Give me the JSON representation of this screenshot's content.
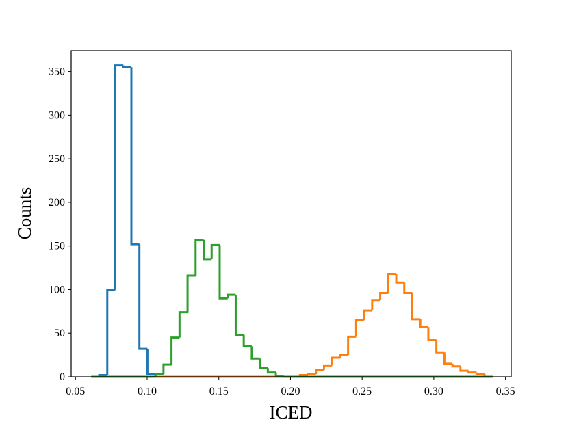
{
  "chart_data": {
    "type": "histogram",
    "xlabel": "ICED",
    "ylabel": "Counts",
    "bins": [
      0.061,
      0.0666,
      0.0722,
      0.0778,
      0.0834,
      0.089,
      0.0946,
      0.1002,
      0.1058,
      0.1114,
      0.117,
      0.1226,
      0.1282,
      0.1338,
      0.1394,
      0.145,
      0.1506,
      0.1562,
      0.1618,
      0.1674,
      0.173,
      0.1786,
      0.1842,
      0.1898,
      0.1954,
      0.201,
      0.2066,
      0.2122,
      0.2178,
      0.2234,
      0.229,
      0.2346,
      0.2402,
      0.2458,
      0.2514,
      0.257,
      0.2626,
      0.2682,
      0.2738,
      0.2794,
      0.285,
      0.2906,
      0.2962,
      0.3018,
      0.3074,
      0.313,
      0.3186,
      0.3242,
      0.3298,
      0.3354,
      0.341
    ],
    "series": [
      {
        "color": "#1f77b4",
        "values": [
          0,
          2,
          100,
          357,
          355,
          152,
          32,
          3,
          0,
          0,
          0,
          0,
          0,
          0,
          0,
          0,
          0,
          0,
          0,
          0,
          0,
          0,
          0,
          0,
          0,
          0,
          0,
          0,
          0,
          0,
          0,
          0,
          0,
          0,
          0,
          0,
          0,
          0,
          0,
          0,
          0,
          0,
          0,
          0,
          0,
          0,
          0,
          0,
          0,
          0
        ]
      },
      {
        "color": "#ff7f0e",
        "values": [
          0,
          0,
          0,
          0,
          0,
          0,
          0,
          0,
          0,
          0,
          0,
          0,
          0,
          0,
          0,
          0,
          0,
          0,
          0,
          0,
          0,
          0,
          0,
          0,
          0,
          0,
          2,
          3,
          8,
          13,
          22,
          25,
          46,
          65,
          76,
          88,
          96,
          118,
          108,
          96,
          66,
          57,
          42,
          28,
          15,
          12,
          7,
          5,
          3,
          0
        ]
      },
      {
        "color": "#2ca02c",
        "values": [
          0,
          0,
          0,
          0,
          0,
          0,
          0,
          0,
          3,
          14,
          45,
          74,
          116,
          157,
          135,
          151,
          90,
          94,
          48,
          35,
          21,
          10,
          5,
          1,
          0,
          0,
          0,
          0,
          0,
          0,
          0,
          0,
          0,
          0,
          0,
          0,
          0,
          0,
          0,
          0,
          0,
          0,
          0,
          0,
          0,
          0,
          0,
          0,
          0,
          0
        ]
      }
    ],
    "xlim": [
      0.047,
      0.354
    ],
    "ylim": [
      0,
      374
    ],
    "xticks": [
      0.05,
      {
        "value": 0.1,
        "label": "0.10"
      },
      0.15,
      {
        "value": 0.2,
        "label": "0.20"
      },
      0.25,
      {
        "value": 0.3,
        "label": "0.30"
      },
      0.35
    ],
    "yticks": [
      0,
      50,
      100,
      150,
      200,
      250,
      300,
      350
    ],
    "grid": false
  }
}
